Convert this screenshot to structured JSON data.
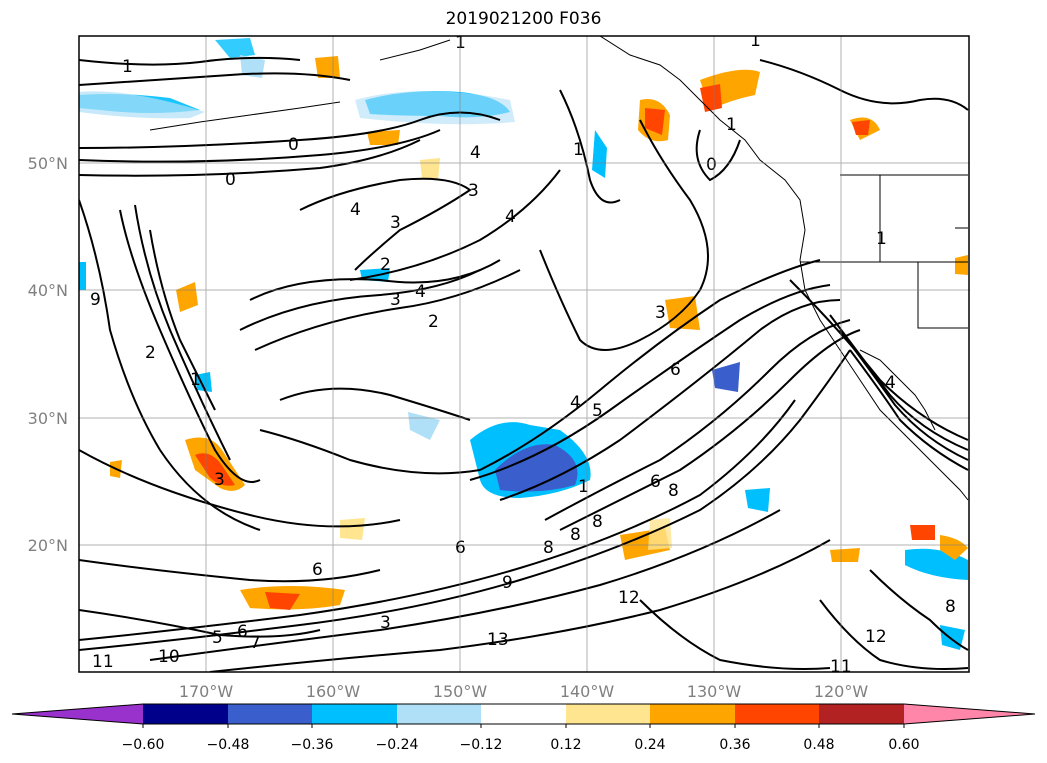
{
  "title": "2019021200 F036",
  "lat_labels": [
    "50°N",
    "40°N",
    "30°N",
    "20°N"
  ],
  "lon_labels": [
    "170°W",
    "160°W",
    "150°W",
    "140°W",
    "130°W",
    "120°W"
  ],
  "colorbar": {
    "ticks": [
      "−0.60",
      "−0.48",
      "−0.36",
      "−0.24",
      "−0.12",
      "0.12",
      "0.24",
      "0.36",
      "0.48",
      "0.60"
    ],
    "colors": [
      "#9932cc",
      "#00008b",
      "#3a5fcd",
      "#00bfff",
      "#b0e0f7",
      "#ffffff",
      "#ffe58f",
      "#ffa500",
      "#ff4500",
      "#b22222",
      "#ff85a9"
    ]
  },
  "contour_labels": [
    "1",
    "1",
    "0",
    "0",
    "4",
    "3",
    "4",
    "4",
    "3",
    "2",
    "3",
    "4",
    "2",
    "1",
    "1",
    "0",
    "1",
    "1",
    "9",
    "2",
    "1",
    "3",
    "3",
    "6",
    "4",
    "5",
    "6",
    "8",
    "8",
    "8",
    "6",
    "8",
    "6",
    "9",
    "12",
    "13",
    "11",
    "10",
    "5",
    "6",
    "7",
    "12",
    "11",
    "3",
    "4",
    "1",
    "8"
  ]
}
